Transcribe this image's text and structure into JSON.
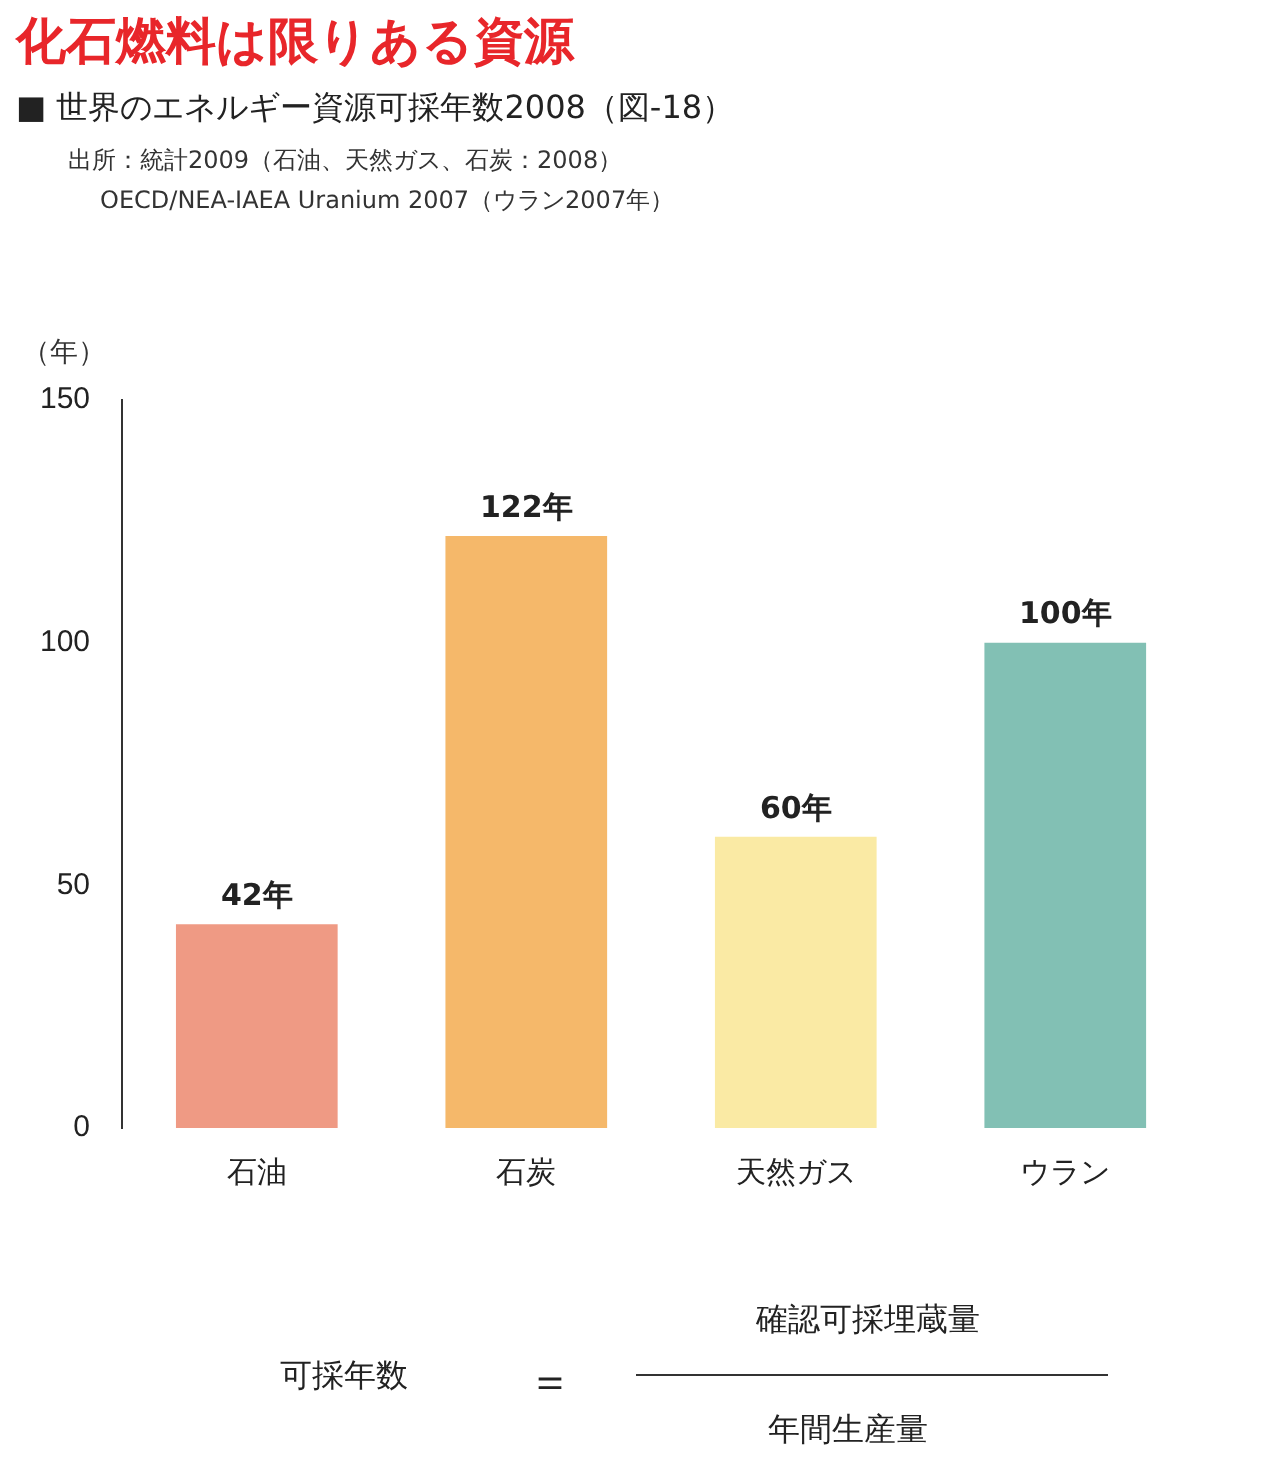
{
  "chart_data": {
    "type": "bar",
    "title": "化石燃料は限りある資源",
    "subtitle": "■ 世界のエネルギー資源可採年数2008（図-18）",
    "ylabel": "（年）",
    "annotations": [
      "出所：統計2009（石油、天然ガス、石炭：2008）",
      "OECD/NEA-IAEA Uranium 2007（ウラン2007年）",
      "可採年数",
      "＝",
      "確認可採埋蔵量",
      "年間生産量"
    ],
    "categories": [
      "石油",
      "石炭",
      "天然ガス",
      "ウラン"
    ],
    "values": [
      42,
      122,
      60,
      100
    ],
    "colors": [
      "#ef9a84",
      "#f5b86a",
      "#faeaa4",
      "#82c0b4"
    ],
    "value_labels": [
      "42年",
      "122年",
      "60年",
      "100年"
    ],
    "ylim": [
      0,
      150
    ],
    "yticks": [
      0,
      50,
      100,
      150
    ],
    "grid": false,
    "legend": false
  }
}
